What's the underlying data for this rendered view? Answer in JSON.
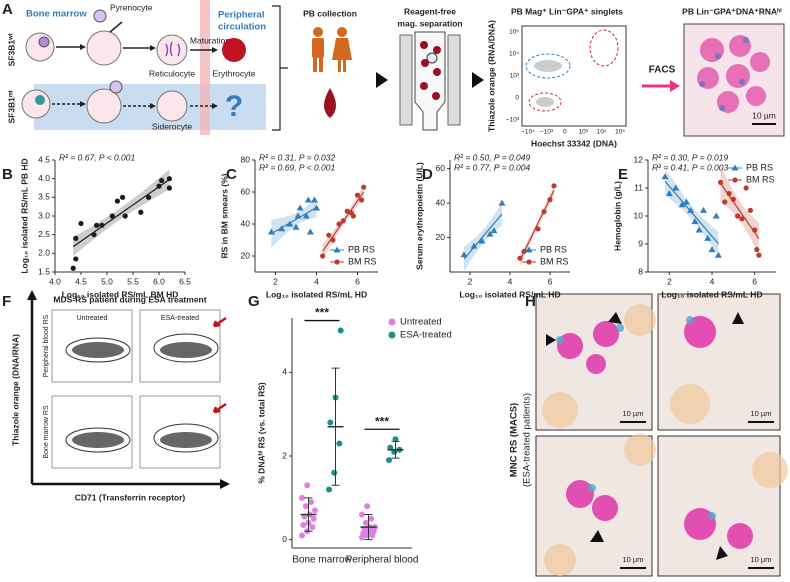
{
  "panels": {
    "letters": [
      "A",
      "B",
      "C",
      "D",
      "E",
      "F",
      "G",
      "H"
    ],
    "a": {
      "bone_marrow": "Bone marrow",
      "pyrenocyte": "Pyrenocyte",
      "peripheral": [
        "Peripheral",
        "circulation"
      ],
      "wt": "SF3B1ʷᵗ",
      "mt": "SF3B1ᵐᵗ",
      "reticulocyte": "Reticulocyte",
      "maturation": "Maturation",
      "erythrocyte": "Erythrocyte",
      "siderocyte": "Siderocyte",
      "question": "?",
      "pb_collection": "PB collection",
      "separation": [
        "Reagent-free",
        "mag. separation"
      ],
      "flow_title": "PB Mag⁺ Lin⁻GPA⁺ singlets",
      "flow_ylabel": "Thiazole orange (RNA/DNA)",
      "flow_xlabel": "Hoechst 33342 (DNA)",
      "flow_yticks": [
        "10⁵",
        "10⁴",
        "10³",
        "0",
        "−10³"
      ],
      "flow_xticks": [
        "−10⁴",
        "−10³",
        "0",
        "10³",
        "10⁴",
        "10⁵"
      ],
      "facs": "FACS",
      "image_title": "PB Lin⁻GPA⁺DNA⁺RNAʰⁱ",
      "scale": "10 µm"
    },
    "f": {
      "title": "MDS-RS patient during ESA treatment",
      "columns": [
        "Untreated",
        "ESA-treated"
      ],
      "rows": [
        "Peripheral blood RS",
        "Bone marrow RS"
      ],
      "ylabel": "Thiazole orange (DNA/RNA)",
      "xlabel": "CD71 (Transferrin receptor)"
    },
    "h": {
      "ylabel": [
        "MNC RS (MACS)",
        "(ESA-treated patients)"
      ],
      "scale": "10 µm"
    }
  },
  "chart_data": [
    {
      "type": "scatter",
      "x": [
        4.35,
        4.4,
        4.4,
        4.5,
        4.75,
        4.8,
        4.9,
        5.1,
        5.2,
        5.3,
        5.35,
        5.65,
        5.8,
        6.0,
        6.05,
        6.2,
        6.2
      ],
      "values": [
        1.6,
        1.85,
        2.4,
        2.8,
        2.5,
        2.75,
        2.75,
        3.0,
        3.4,
        3.5,
        3.0,
        3.1,
        3.5,
        3.8,
        3.95,
        4.0,
        3.75
      ],
      "color": "#1a1a1a",
      "fit": true,
      "annotations": [
        "R² = 0.67, P < 0.001"
      ],
      "xlabel": "Log₁₀ isolated RS/mL BM HD",
      "ylabel": "Log₁₀ isolated RS/mL PB HD",
      "xlim": [
        4.0,
        6.5
      ],
      "xticks": [
        {
          "value": 4,
          "label": "4.0"
        },
        4.5,
        {
          "value": 5,
          "label": "5.0"
        },
        5.5,
        {
          "value": 6,
          "label": "6.0"
        },
        6.5
      ],
      "ylim": [
        1.5,
        4.5
      ],
      "yticks": [
        1.5,
        {
          "value": 2,
          "label": "2.0"
        },
        2.5,
        {
          "value": 3,
          "label": "3.0"
        },
        3.5,
        {
          "value": 4,
          "label": "4.0"
        },
        4.5
      ]
    },
    {
      "type": "scatter",
      "fit": true,
      "legend": "lower right",
      "xlabel": "Log₁₀ isolated RS/mL HD",
      "ylabel": "RS in BM smears (%)",
      "annotations": [
        "R² = 0.31, P = 0.032",
        "R² = 0.69, P < 0.001"
      ],
      "xlim": [
        1,
        7
      ],
      "xticks": [
        2,
        4,
        6
      ],
      "ylim": [
        10,
        80
      ],
      "yticks": [
        20,
        40,
        60,
        80
      ],
      "series": [
        {
          "name": "PB RS",
          "color": "#2f7ec1",
          "marker": "triangle",
          "x": [
            1.8,
            2.3,
            2.7,
            3.0,
            3.1,
            3.2,
            3.5,
            3.6,
            3.7,
            3.9,
            4.0
          ],
          "values": [
            35,
            37,
            40,
            38,
            45,
            50,
            45,
            55,
            35,
            55,
            50
          ]
        },
        {
          "name": "BM RS",
          "color": "#c0392b",
          "marker": "circle",
          "x": [
            4.3,
            4.6,
            4.8,
            5.1,
            5.3,
            5.5,
            5.7,
            5.8,
            6.0,
            6.2,
            6.3
          ],
          "values": [
            20,
            33,
            30,
            40,
            42,
            48,
            47,
            45,
            58,
            55,
            63
          ]
        }
      ]
    },
    {
      "type": "scatter",
      "fit": true,
      "legend": "lower right",
      "xlabel": "Log₁₀ isolated RS/mL HD",
      "ylabel": "Serum erythropoietin (U/L)",
      "annotations": [
        "R² = 0.50, P = 0.049",
        "R² = 0.77, P = 0.004"
      ],
      "xlim": [
        1,
        7
      ],
      "xticks": [
        2,
        4,
        6
      ],
      "ylim": [
        0,
        65
      ],
      "yticks": [
        20,
        40,
        60
      ],
      "series": [
        {
          "name": "PB RS",
          "color": "#2f7ec1",
          "marker": "triangle",
          "x": [
            1.7,
            2.2,
            2.6,
            3.0,
            3.2,
            3.6
          ],
          "values": [
            10,
            15,
            18,
            22,
            24,
            40
          ]
        },
        {
          "name": "BM RS",
          "color": "#c0392b",
          "marker": "circle",
          "x": [
            4.5,
            4.7,
            5.4,
            5.7,
            6.0,
            6.2
          ],
          "values": [
            8,
            12,
            25,
            35,
            42,
            50
          ]
        }
      ]
    },
    {
      "type": "scatter",
      "fit": true,
      "legend": "upper right",
      "xlabel": "Log₁₀ isolated RS/mL HD",
      "ylabel": "Hemoglobin (g/L)",
      "annotations": [
        "R² = 0.30, P = 0.019",
        "R² = 0.41, P = 0.003"
      ],
      "xlim": [
        1,
        7
      ],
      "xticks": [
        2,
        4,
        6
      ],
      "ylim": [
        8,
        12
      ],
      "yticks": [
        8,
        9,
        10,
        11,
        12
      ],
      "series": [
        {
          "name": "PB RS",
          "color": "#2f7ec1",
          "marker": "triangle",
          "x": [
            1.8,
            2.0,
            2.3,
            2.6,
            2.8,
            3.0,
            3.2,
            3.4,
            3.6,
            3.8,
            4.0,
            4.2,
            4.3
          ],
          "values": [
            11.4,
            10.8,
            11.0,
            10.4,
            10.5,
            10.2,
            9.8,
            9.5,
            10.2,
            9.2,
            8.8,
            10.0,
            8.6
          ]
        },
        {
          "name": "BM RS",
          "color": "#c0392b",
          "marker": "circle",
          "x": [
            4.4,
            4.6,
            4.8,
            5.0,
            5.2,
            5.4,
            5.6,
            5.8,
            6.0,
            6.1,
            6.2
          ],
          "values": [
            11.2,
            10.5,
            10.8,
            10.6,
            10.0,
            9.9,
            11.0,
            10.2,
            9.5,
            8.8,
            8.6
          ]
        }
      ]
    },
    {
      "type": "dot",
      "categories": [
        "Bone marrow",
        "Peripheral blood"
      ],
      "ylabel": "% DNAʰⁱ RS (vs. total RS)",
      "legend": "upper right",
      "ylim": [
        -0.2,
        5.3
      ],
      "yticks": [
        0,
        2,
        4
      ],
      "significance": [
        "***",
        "***"
      ],
      "series": [
        {
          "name": "Untreated",
          "color": "#e07ee6",
          "values": [
            [
              0.1,
              0.2,
              0.3,
              0.35,
              0.4,
              0.5,
              0.55,
              0.6,
              0.7,
              0.8,
              0.9,
              1.0,
              1.3
            ],
            [
              0.05,
              0.1,
              0.1,
              0.15,
              0.2,
              0.2,
              0.25,
              0.3,
              0.3,
              0.4,
              0.5,
              0.6,
              0.8
            ]
          ],
          "means": [
            0.6,
            0.3
          ],
          "sd": [
            0.4,
            0.3
          ]
        },
        {
          "name": "ESA-treated",
          "color": "#1a8f8a",
          "values": [
            [
              1.2,
              1.6,
              2.3,
              2.8,
              3.4,
              5.0
            ],
            [
              1.9,
              2.1,
              2.15,
              2.2,
              2.4
            ]
          ],
          "means": [
            2.7,
            2.15
          ],
          "sd": [
            1.4,
            0.2
          ]
        }
      ]
    }
  ]
}
